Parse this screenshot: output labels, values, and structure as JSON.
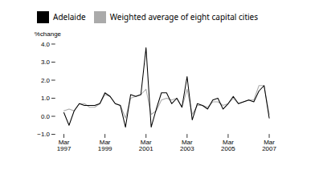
{
  "chart_data": {
    "type": "line",
    "title": "",
    "ylabel": "%change",
    "categories": [
      "Mar\n1997",
      null,
      null,
      null,
      null,
      null,
      null,
      null,
      "Mar\n1999",
      null,
      null,
      null,
      null,
      null,
      null,
      null,
      "Mar\n2001",
      null,
      null,
      null,
      null,
      null,
      null,
      null,
      "Mar\n2003",
      null,
      null,
      null,
      null,
      null,
      null,
      null,
      "Mar\n2005",
      null,
      null,
      null,
      null,
      null,
      null,
      null,
      "Mar\n2007"
    ],
    "series": [
      {
        "name": "Adelaide",
        "color": "#000000",
        "values": [
          0.2,
          -0.5,
          0.3,
          0.7,
          0.6,
          0.6,
          0.6,
          0.7,
          1.3,
          1.1,
          0.7,
          0.6,
          -0.6,
          1.2,
          1.1,
          1.2,
          3.8,
          -0.6,
          0.4,
          1.3,
          1.3,
          0.7,
          1.0,
          0.5,
          2.2,
          -0.2,
          0.7,
          0.6,
          0.4,
          0.9,
          1.0,
          0.4,
          0.7,
          1.1,
          0.7,
          0.8,
          0.9,
          0.8,
          1.4,
          1.7,
          -0.1
        ]
      },
      {
        "name": "Weighted average of eight capital cities",
        "color": "#aaaaaa",
        "values": [
          0.3,
          0.4,
          0.3,
          0.7,
          0.7,
          0.5,
          0.5,
          0.7,
          1.2,
          1.1,
          0.7,
          0.6,
          -0.1,
          1.0,
          1.1,
          1.2,
          1.5,
          0.1,
          0.3,
          0.9,
          1.0,
          0.9,
          1.0,
          0.5,
          1.5,
          0.1,
          0.6,
          0.6,
          0.5,
          0.8,
          0.8,
          0.6,
          0.7,
          1.0,
          0.7,
          0.8,
          0.9,
          0.9,
          1.7,
          1.7,
          0.1
        ]
      }
    ],
    "ylim": [
      -1,
      4
    ],
    "yticks": [
      -1,
      0,
      1,
      2,
      3,
      4
    ],
    "grid": false,
    "legend": "upper left"
  }
}
